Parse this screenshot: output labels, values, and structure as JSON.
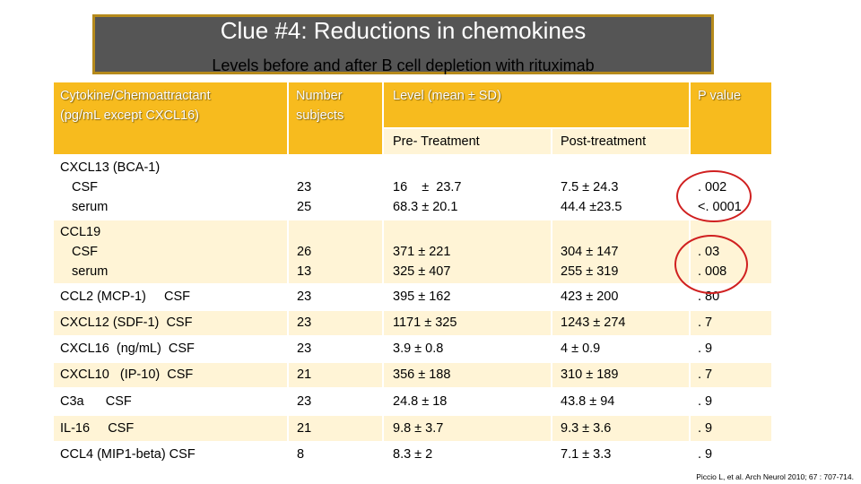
{
  "title": "Clue #4: Reductions in chemokines",
  "subtitle": "Levels before and after B cell depletion with rituximab",
  "headers": {
    "cytokine_l1": "Cytokine/Chemoattractant",
    "cytokine_l2": "(pg/mL except CXCL16)",
    "number_l1": "Number",
    "number_l2": "subjects",
    "level": "Level   (mean ± SD)",
    "pvalue": "P value",
    "pre": "Pre- Treatment",
    "post": "Post-treatment"
  },
  "rows": [
    {
      "name": [
        "CXCL13 (BCA-1)",
        "CSF",
        "serum"
      ],
      "n": [
        "23",
        "25"
      ],
      "pre": [
        "16    ±  23.7",
        "68.3 ± 20.1"
      ],
      "post": [
        "7.5 ± 24.3",
        "44.4 ±23.5"
      ],
      "p": [
        ". 002",
        "<. 0001"
      ]
    },
    {
      "name": [
        "CCL19",
        "CSF",
        "serum"
      ],
      "n": [
        "26",
        "13"
      ],
      "pre": [
        "371 ± 221",
        "325 ± 407"
      ],
      "post": [
        "304 ± 147",
        "255 ± 319"
      ],
      "p": [
        ". 03",
        ". 008"
      ]
    },
    {
      "name": [
        "CCL2 (MCP-1)     CSF"
      ],
      "n": [
        "23"
      ],
      "pre": [
        "395 ± 162"
      ],
      "post": [
        "423 ± 200"
      ],
      "p": [
        ". 80"
      ]
    },
    {
      "name": [
        "CXCL12 (SDF-1)  CSF"
      ],
      "n": [
        "23"
      ],
      "pre": [
        "1171 ± 325"
      ],
      "post": [
        "1243 ± 274"
      ],
      "p": [
        ". 7"
      ]
    },
    {
      "name": [
        "CXCL16  (ng/mL)  CSF"
      ],
      "n": [
        "23"
      ],
      "pre": [
        "3.9 ± 0.8"
      ],
      "post": [
        "4 ± 0.9"
      ],
      "p": [
        ". 9"
      ]
    },
    {
      "name": [
        "CXCL10   (IP-10)  CSF"
      ],
      "n": [
        "21"
      ],
      "pre": [
        "356 ± 188"
      ],
      "post": [
        "310 ± 189"
      ],
      "p": [
        ". 7"
      ]
    },
    {
      "name": [
        "C3a      CSF"
      ],
      "n": [
        "23"
      ],
      "pre": [
        "24.8 ± 18"
      ],
      "post": [
        "43.8 ± 94"
      ],
      "p": [
        ". 9"
      ]
    },
    {
      "name": [
        "IL-16     CSF"
      ],
      "n": [
        "21"
      ],
      "pre": [
        "9.8 ± 3.7"
      ],
      "post": [
        "9.3 ± 3.6"
      ],
      "p": [
        ". 9"
      ]
    },
    {
      "name": [
        "CCL4 (MIP1-beta) CSF"
      ],
      "n": [
        "8"
      ],
      "pre": [
        "8.3 ± 2"
      ],
      "post": [
        "7.1 ± 3.3"
      ],
      "p": [
        ". 9"
      ]
    }
  ],
  "citation": "Piccio L, et al. Arch Neurol 2010; 67 : 707-714."
}
